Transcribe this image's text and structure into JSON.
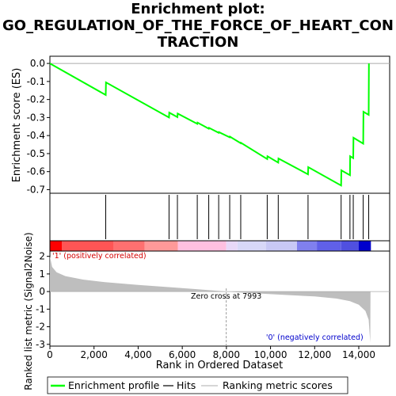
{
  "title_lines": [
    "Enrichment plot:",
    "GO_REGULATION_OF_THE_FORCE_OF_HEART_CON",
    "TRACTION"
  ],
  "colors": {
    "enrichment_line": "#00ff00",
    "hits": "#000000",
    "metric_fill": "#bebebe",
    "positive_label": "#d40000",
    "negative_label": "#0000cc",
    "zero_line": "#aaaaaa"
  },
  "chart_data": {
    "type": "line",
    "x_axis": {
      "label": "Rank in Ordered Dataset",
      "range": [
        0,
        15400
      ],
      "ticks": [
        0,
        2000,
        4000,
        6000,
        8000,
        10000,
        12000,
        14000
      ],
      "tick_labels": [
        "0",
        "2,000",
        "4,000",
        "6,000",
        "8,000",
        "10,000",
        "12,000",
        "14,000"
      ]
    },
    "es_panel": {
      "ylabel": "Enrichment score (ES)",
      "ylim": [
        -0.72,
        0.04
      ],
      "ticks": [
        0.0,
        -0.1,
        -0.2,
        -0.3,
        -0.4,
        -0.5,
        -0.6,
        -0.7
      ],
      "tick_labels": [
        "0.0",
        "-0.1",
        "-0.2",
        "-0.3",
        "-0.4",
        "-0.5",
        "-0.6",
        "-0.7"
      ],
      "series": [
        {
          "name": "Enrichment profile",
          "points": [
            [
              0,
              0.0
            ],
            [
              2530,
              -0.175
            ],
            [
              2540,
              -0.105
            ],
            [
              5400,
              -0.3
            ],
            [
              5410,
              -0.273
            ],
            [
              5780,
              -0.298
            ],
            [
              5790,
              -0.278
            ],
            [
              6680,
              -0.335
            ],
            [
              6690,
              -0.328
            ],
            [
              7200,
              -0.362
            ],
            [
              7210,
              -0.357
            ],
            [
              7650,
              -0.385
            ],
            [
              7660,
              -0.381
            ],
            [
              8150,
              -0.41
            ],
            [
              8160,
              -0.406
            ],
            [
              8650,
              -0.443
            ],
            [
              8660,
              -0.44
            ],
            [
              9850,
              -0.53
            ],
            [
              9860,
              -0.515
            ],
            [
              10350,
              -0.55
            ],
            [
              10360,
              -0.527
            ],
            [
              11700,
              -0.615
            ],
            [
              11710,
              -0.575
            ],
            [
              13200,
              -0.677
            ],
            [
              13210,
              -0.593
            ],
            [
              13600,
              -0.62
            ],
            [
              13610,
              -0.515
            ],
            [
              13750,
              -0.525
            ],
            [
              13760,
              -0.412
            ],
            [
              14200,
              -0.445
            ],
            [
              14210,
              -0.268
            ],
            [
              14450,
              -0.285
            ],
            [
              14460,
              0.0
            ]
          ]
        }
      ]
    },
    "hits": [
      2530,
      5400,
      5780,
      6680,
      7200,
      7650,
      8150,
      8650,
      9850,
      10350,
      11700,
      13200,
      13600,
      13750,
      14200,
      14450
    ],
    "metric_panel": {
      "ylabel": "Ranked list metric (Signal2Noise)",
      "ylim": [
        -3.1,
        2.3
      ],
      "ticks": [
        2,
        1,
        0,
        -1,
        -2,
        -3
      ],
      "tick_labels": [
        "2",
        "1",
        "0",
        "-1",
        "-2",
        "-3"
      ],
      "zero_cross_label": "Zero cross at 7993",
      "zero_cross": 7993,
      "positive_label": "'1' (positively correlated)",
      "negative_label": "'0' (negatively correlated)",
      "profile": [
        [
          0,
          2.0
        ],
        [
          100,
          1.4
        ],
        [
          300,
          1.1
        ],
        [
          700,
          0.88
        ],
        [
          1500,
          0.68
        ],
        [
          2500,
          0.53
        ],
        [
          4000,
          0.38
        ],
        [
          5500,
          0.24
        ],
        [
          7000,
          0.1
        ],
        [
          7993,
          0.0
        ],
        [
          9000,
          -0.08
        ],
        [
          10500,
          -0.18
        ],
        [
          12000,
          -0.28
        ],
        [
          13000,
          -0.4
        ],
        [
          13600,
          -0.55
        ],
        [
          14000,
          -0.75
        ],
        [
          14300,
          -1.1
        ],
        [
          14450,
          -1.6
        ],
        [
          14520,
          -2.9
        ],
        [
          14530,
          0.0
        ]
      ]
    },
    "colorbar_segments": [
      [
        0,
        550,
        "#ff0000"
      ],
      [
        550,
        2900,
        "#ff5555"
      ],
      [
        2900,
        4300,
        "#ff7070"
      ],
      [
        4300,
        5800,
        "#ff9999"
      ],
      [
        5800,
        7993,
        "#ffc0e0"
      ],
      [
        7993,
        8500,
        "#e8d8f8"
      ],
      [
        8500,
        9800,
        "#d8d8f8"
      ],
      [
        9800,
        11200,
        "#c8c8f5"
      ],
      [
        11200,
        12100,
        "#8080ee"
      ],
      [
        12100,
        13200,
        "#6060e8"
      ],
      [
        13200,
        14000,
        "#5050e0"
      ],
      [
        14000,
        14550,
        "#0000cc"
      ]
    ],
    "legend": [
      "Enrichment profile",
      "Hits",
      "Ranking metric scores"
    ]
  }
}
